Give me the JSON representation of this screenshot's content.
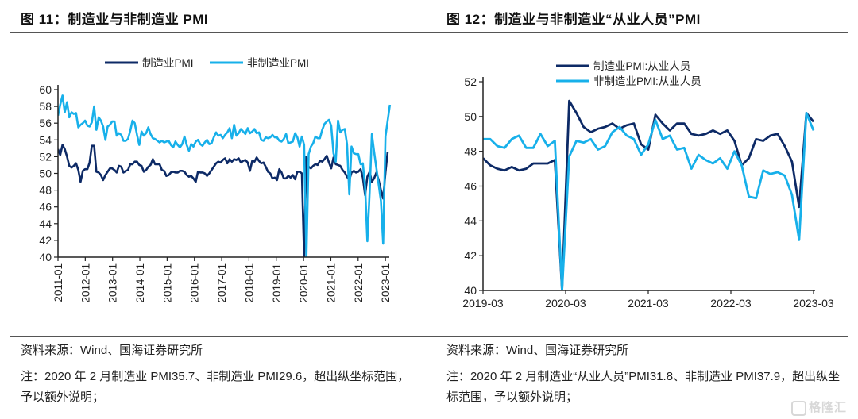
{
  "figures": [
    {
      "title": "图 11：制造业与非制造业 PMI",
      "source": "资料来源：Wind、国海证券研究所",
      "note": "注：2020 年 2 月制造业 PMI35.7、非制造业 PMI29.6，超出纵坐标范围，予以额外说明；"
    },
    {
      "title": "图 12：制造业与非制造业“从业人员”PMI",
      "source": "资料来源：Wind、国海证券研究所",
      "note": "注：2020 年 2 月制造业“从业人员”PMI31.8、非制造业 PMI37.9，超出纵坐标范围，予以额外说明；"
    }
  ],
  "watermark": "格隆汇",
  "colors": {
    "dark": "#0d2a66",
    "light": "#17b0ea"
  },
  "chart_data": [
    {
      "type": "line",
      "title": "制造业与非制造业 PMI",
      "xlabel": "",
      "ylabel": "",
      "ylim": [
        40,
        60
      ],
      "yticks": [
        40,
        42,
        44,
        46,
        48,
        50,
        52,
        54,
        56,
        58,
        60
      ],
      "xticks": [
        "2011-01",
        "2012-01",
        "2013-01",
        "2014-01",
        "2015-01",
        "2016-01",
        "2017-01",
        "2018-01",
        "2019-01",
        "2020-01",
        "2021-01",
        "2022-01",
        "2023-01"
      ],
      "x_start": "2011-01",
      "x_end": "2023-02",
      "legend": "top-center",
      "grid": false,
      "series": [
        {
          "name": "制造业PMI",
          "color": "#0d2a66",
          "values": [
            52.9,
            52.2,
            53.4,
            52.9,
            52.0,
            50.9,
            50.7,
            50.9,
            51.2,
            50.4,
            49.0,
            50.3,
            50.5,
            50.5,
            51.3,
            53.3,
            53.3,
            50.2,
            50.1,
            49.8,
            49.2,
            49.8,
            50.2,
            50.6,
            50.6,
            50.4,
            50.1,
            50.9,
            50.8,
            50.1,
            50.3,
            50.4,
            51.1,
            51.1,
            51.4,
            51.4,
            51.0,
            50.9,
            50.2,
            50.4,
            50.8,
            51.0,
            51.7,
            51.1,
            51.1,
            51.1,
            50.4,
            50.3,
            49.7,
            49.8,
            50.1,
            50.2,
            50.1,
            50.1,
            50.3,
            50.3,
            50.2,
            49.8,
            49.6,
            49.7,
            49.4,
            49.0,
            50.2,
            50.1,
            50.1,
            50.0,
            49.7,
            50.0,
            50.4,
            50.8,
            51.2,
            51.4,
            51.3,
            51.6,
            51.8,
            51.2,
            51.7,
            51.4,
            51.7,
            51.6,
            51.8,
            51.3,
            51.5,
            51.6,
            51.3,
            50.3,
            51.5,
            51.4,
            51.9,
            51.5,
            51.2,
            51.3,
            50.8,
            50.2,
            50.0,
            49.4,
            49.5,
            49.2,
            50.5,
            50.1,
            49.4,
            49.4,
            49.7,
            49.5,
            49.8,
            49.3,
            50.2,
            50.2,
            50.0,
            35.7,
            52.0,
            50.8,
            50.6,
            50.9,
            51.1,
            51.0,
            51.5,
            51.4,
            51.7,
            52.1,
            51.3,
            50.6,
            51.9,
            51.1,
            51.0,
            50.9,
            50.4,
            50.1,
            49.6,
            49.2,
            50.1,
            50.3,
            50.1,
            50.2,
            50.5,
            49.5,
            47.4,
            49.6,
            50.2,
            49.0,
            49.4,
            50.1,
            49.2,
            48.0,
            47.0,
            50.1,
            52.6
          ]
        },
        {
          "name": "非制造业PMI",
          "color": "#17b0ea",
          "values": [
            56.9,
            58.2,
            59.3,
            57.3,
            58.5,
            56.7,
            57.3,
            57.1,
            57.2,
            55.5,
            55.8,
            56.0,
            56.3,
            55.7,
            55.6,
            56.1,
            58.0,
            55.2,
            56.7,
            56.3,
            55.6,
            54.0,
            55.6,
            55.8,
            56.2,
            56.2,
            54.5,
            54.8,
            54.6,
            53.9,
            53.9,
            54.1,
            55.1,
            56.3,
            56.0,
            54.6,
            53.4,
            55.0,
            54.5,
            54.8,
            55.5,
            54.7,
            54.2,
            54.1,
            53.9,
            53.7,
            53.9,
            53.7,
            53.8,
            53.9,
            53.4,
            53.1,
            53.8,
            53.4,
            53.1,
            53.5,
            54.4,
            53.4,
            52.7,
            53.5,
            53.2,
            53.8,
            54.0,
            53.5,
            53.3,
            53.7,
            54.0,
            53.5,
            53.6,
            54.3,
            54.9,
            54.5,
            54.6,
            54.2,
            54.6,
            54.9,
            55.4,
            54.2,
            55.8,
            54.5,
            54.8,
            55.3,
            55.0,
            54.7,
            55.4,
            54.8,
            55.0,
            55.3,
            54.8,
            54.9,
            54.0,
            53.9,
            54.3,
            54.2,
            54.3,
            54.6,
            54.3,
            54.3,
            53.9,
            53.8,
            54.1,
            54.7,
            53.6,
            53.7,
            53.8,
            54.8,
            54.3,
            53.2,
            54.4,
            53.4,
            29.6,
            52.3,
            53.2,
            53.6,
            54.4,
            54.2,
            54.2,
            55.2,
            55.9,
            56.2,
            56.4,
            55.7,
            52.4,
            51.4,
            56.3,
            54.9,
            55.2,
            55.3,
            53.5,
            47.5,
            53.2,
            52.4,
            52.3,
            52.3,
            51.1,
            51.2,
            48.4,
            41.9,
            47.8,
            54.7,
            52.6,
            50.6,
            48.7,
            46.7,
            41.6,
            54.4,
            56.3,
            58.2
          ]
        }
      ]
    },
    {
      "type": "line",
      "title": "制造业与非制造业“从业人员”PMI",
      "xlabel": "",
      "ylabel": "",
      "ylim": [
        40,
        52
      ],
      "yticks": [
        40,
        42,
        44,
        46,
        48,
        50,
        52
      ],
      "xticks": [
        "2019-03",
        "2020-03",
        "2021-03",
        "2022-03",
        "2023-03"
      ],
      "x_start": "2019-03",
      "x_end": "2023-03",
      "legend": "top-center",
      "grid": false,
      "series": [
        {
          "name": "制造业PMI:从业人员",
          "color": "#0d2a66",
          "values": [
            47.6,
            47.2,
            47.0,
            46.9,
            47.1,
            46.9,
            47.0,
            47.3,
            47.3,
            47.3,
            47.5,
            31.8,
            50.9,
            50.2,
            49.4,
            49.1,
            49.3,
            49.4,
            49.6,
            49.3,
            49.5,
            49.6,
            48.4,
            48.1,
            50.1,
            49.6,
            49.2,
            49.6,
            49.6,
            49.0,
            48.9,
            49.0,
            49.2,
            49.0,
            49.2,
            48.6,
            47.2,
            47.6,
            48.7,
            48.6,
            48.9,
            49.0,
            48.3,
            47.4,
            44.8,
            50.2,
            49.7
          ]
        },
        {
          "name": "非制造业PMI:从业人员",
          "color": "#17b0ea",
          "values": [
            48.7,
            48.7,
            48.3,
            48.2,
            48.7,
            48.9,
            48.2,
            48.2,
            49.0,
            48.3,
            48.6,
            37.9,
            47.7,
            48.6,
            48.5,
            48.7,
            48.1,
            48.3,
            49.1,
            49.4,
            48.9,
            48.7,
            47.8,
            48.4,
            49.8,
            48.7,
            48.9,
            48.1,
            48.2,
            47.0,
            47.8,
            47.5,
            47.3,
            47.6,
            47.0,
            48.0,
            47.2,
            45.4,
            45.3,
            46.9,
            46.7,
            46.8,
            46.6,
            45.5,
            42.9,
            50.2,
            49.2
          ]
        }
      ]
    }
  ]
}
